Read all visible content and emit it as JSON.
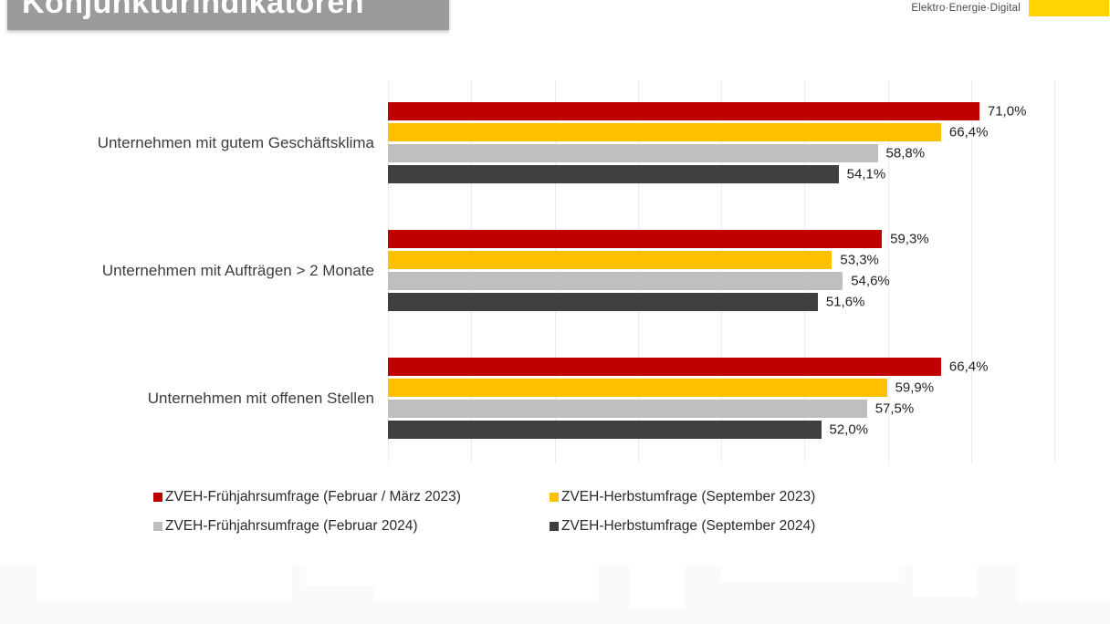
{
  "header": {
    "title": "Konjunkturindikatoren",
    "logo_text": "Elektro·Energie·Digital",
    "logo_color": "#FFD500"
  },
  "chart_data": {
    "type": "bar",
    "orientation": "horizontal",
    "title": "Konjunkturindikatoren",
    "categories": [
      "Unternehmen mit gutem Geschäftsklima",
      "Unternehmen mit Aufträgen > 2 Monate",
      "Unternehmen mit offenen Stellen"
    ],
    "series": [
      {
        "name": "ZVEH-Frühjahrsumfrage (Februar / März 2023)",
        "color": "#C00000",
        "values": [
          71.0,
          59.3,
          66.4
        ],
        "labels": [
          "71,0%",
          "59,3%",
          "66,4%"
        ]
      },
      {
        "name": "ZVEH-Herbstumfrage (September 2023)",
        "color": "#FFC000",
        "values": [
          66.4,
          53.3,
          59.9
        ],
        "labels": [
          "66,4%",
          "53,3%",
          "59,9%"
        ]
      },
      {
        "name": "ZVEH-Frühjahrsumfrage (Februar 2024)",
        "color": "#BFBFBF",
        "values": [
          58.8,
          54.6,
          57.5
        ],
        "labels": [
          "58,8%",
          "54,6%",
          "57,5%"
        ]
      },
      {
        "name": "ZVEH-Herbstumfrage (September 2024)",
        "color": "#3F3F3F",
        "values": [
          54.1,
          51.6,
          52.0
        ],
        "labels": [
          "54,1%",
          "51,6%",
          "52,0%"
        ]
      }
    ],
    "xlim": [
      0,
      80
    ],
    "gridlines_every": 10,
    "grid": true,
    "value_label_format": "german-decimal-percent",
    "legend_position": "bottom"
  }
}
